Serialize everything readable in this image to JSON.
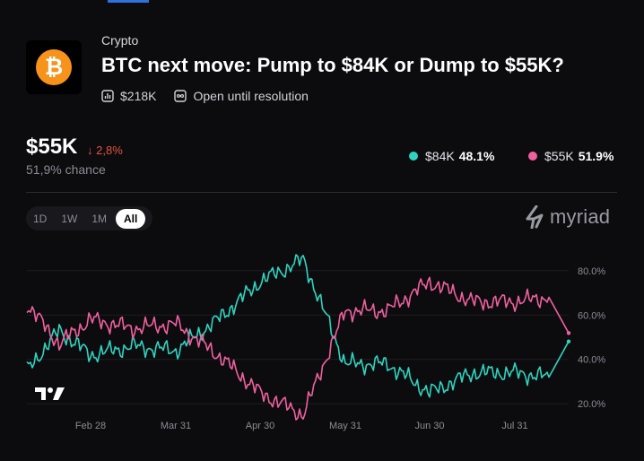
{
  "market": {
    "category": "Crypto",
    "title": "BTC next move: Pump to $84K or Dump to $55K?",
    "volume": "$218K",
    "status": "Open until resolution",
    "icon": "bitcoin-icon"
  },
  "summary": {
    "price": "$55K",
    "change": "2,8%",
    "change_direction": "down",
    "chance": "51,9% chance"
  },
  "legend": [
    {
      "label": "$84K",
      "value": "48.1%",
      "color": "#2dd4bf"
    },
    {
      "label": "$55K",
      "value": "51.9%",
      "color": "#f0609e"
    }
  ],
  "range_tabs": [
    {
      "label": "1D",
      "active": false
    },
    {
      "label": "1W",
      "active": false
    },
    {
      "label": "1M",
      "active": false
    },
    {
      "label": "All",
      "active": true
    }
  ],
  "brand": "myriad",
  "chart_data": {
    "type": "line",
    "x_tick_labels": [
      "Feb 28",
      "Mar 31",
      "Apr 30",
      "May 31",
      "Jun 30",
      "Jul 31"
    ],
    "y_tick_labels": [
      "80.0%",
      "60.0%",
      "40.0%",
      "20.0%"
    ],
    "y_ticks": [
      80,
      60,
      40,
      20
    ],
    "ylim": [
      12,
      88
    ],
    "x": [
      "Feb 1",
      "Feb 14",
      "Feb 28",
      "Mar 14",
      "Mar 31",
      "Apr 14",
      "Apr 30",
      "May 14",
      "May 31",
      "Jun 14",
      "Jun 30",
      "Jul 14",
      "Jul 31",
      "Aug 10",
      "Aug 12"
    ],
    "series": [
      {
        "name": "$84K",
        "color": "#2dd4bf",
        "values": [
          35,
          53,
          42,
          46,
          44,
          58,
          75,
          85,
          38,
          38,
          25,
          34,
          34,
          32,
          48.1
        ]
      },
      {
        "name": "$55K",
        "color": "#f0609e",
        "values": [
          65,
          47,
          58,
          54,
          56,
          42,
          25,
          15,
          62,
          62,
          75,
          66,
          66,
          68,
          51.9
        ]
      }
    ]
  }
}
